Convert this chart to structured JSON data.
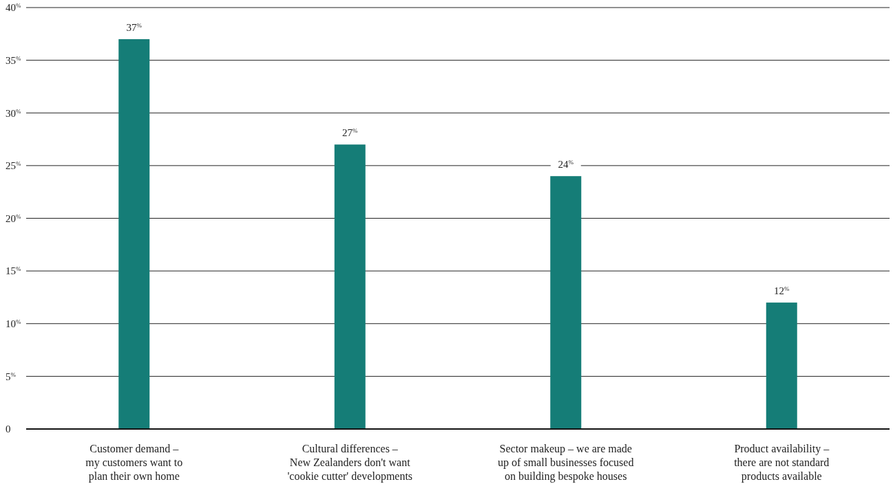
{
  "chart_data": {
    "type": "bar",
    "categories": [
      "Customer demand –\nmy customers want to\nplan their own home",
      "Cultural differences –\nNew Zealanders don't want\n'cookie cutter' developments",
      "Sector makeup – we are made\nup of small businesses focused\non building bespoke houses",
      "Product availability –\nthere are not standard\nproducts available"
    ],
    "values": [
      37,
      27,
      24,
      12
    ],
    "value_labels": [
      "37$^{%}$",
      "27$^{%}$",
      "24$^{%}$",
      "12$^{%}$"
    ],
    "color": "#157d77",
    "ylim": [
      0,
      40
    ],
    "yticks": [
      0,
      {
        "value": 5,
        "label": "5$^{%}$"
      },
      {
        "value": 10,
        "label": "10$^{%}$"
      },
      {
        "value": 15,
        "label": "15$^{%}$"
      },
      {
        "value": 20,
        "label": "20$^{%}$"
      },
      {
        "value": 25,
        "label": "25$^{%}$"
      },
      {
        "value": 30,
        "label": "30$^{%}$"
      },
      {
        "value": 35,
        "label": "35$^{%}$"
      },
      {
        "value": 40,
        "label": "40$^{%}$"
      }
    ],
    "grid": "y"
  }
}
